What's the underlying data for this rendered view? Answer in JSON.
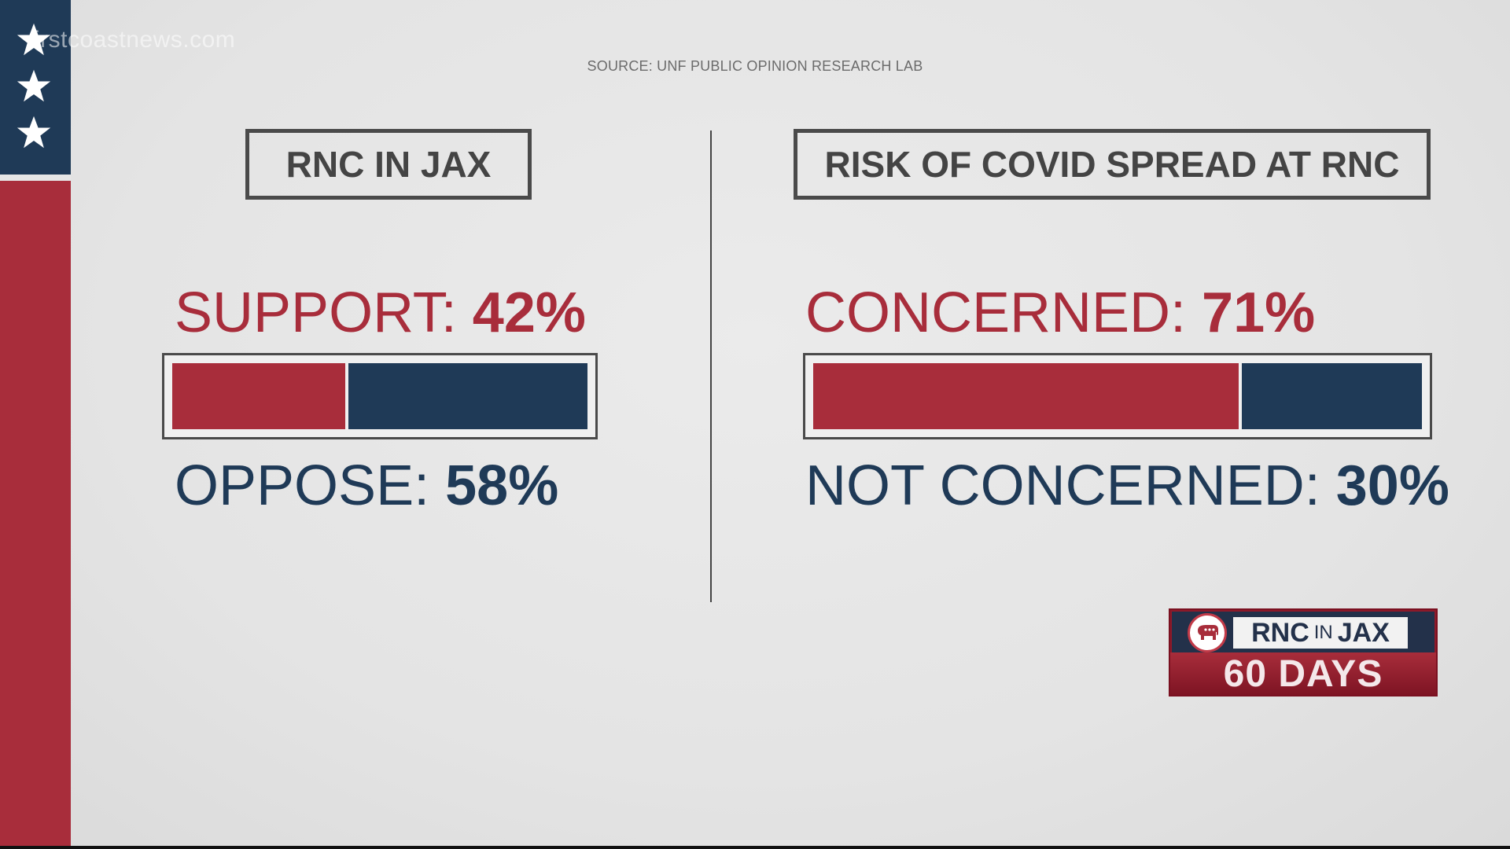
{
  "watermark": "irstcoastnews.com",
  "source": "SOURCE: UNF PUBLIC OPINION RESEARCH LAB",
  "colors": {
    "red": "#a82d3b",
    "navy": "#1f3a57",
    "frame": "#4a4a4a"
  },
  "left_panel": {
    "title": "RNC IN JAX",
    "top_label": "SUPPORT:",
    "top_value": "42%",
    "bottom_label": "OPPOSE:",
    "bottom_value": "58%"
  },
  "right_panel": {
    "title": "RISK OF COVID SPREAD AT RNC",
    "top_label": "CONCERNED:",
    "top_value": "71%",
    "bottom_label": "NOT CONCERNED:",
    "bottom_value": "30%"
  },
  "badge": {
    "title_main_1": "RNC",
    "title_small": "IN",
    "title_main_2": "JAX",
    "days": "60 DAYS"
  },
  "chart_data": [
    {
      "type": "bar",
      "title": "RNC IN JAX",
      "orientation": "horizontal-stacked",
      "series": [
        {
          "name": "SUPPORT",
          "values": [
            42
          ],
          "color": "#a82d3b"
        },
        {
          "name": "OPPOSE",
          "values": [
            58
          ],
          "color": "#1f3a57"
        }
      ]
    },
    {
      "type": "bar",
      "title": "RISK OF COVID SPREAD AT RNC",
      "orientation": "horizontal-stacked",
      "series": [
        {
          "name": "CONCERNED",
          "values": [
            71
          ],
          "color": "#a82d3b"
        },
        {
          "name": "NOT CONCERNED",
          "values": [
            30
          ],
          "color": "#1f3a57"
        }
      ]
    }
  ]
}
